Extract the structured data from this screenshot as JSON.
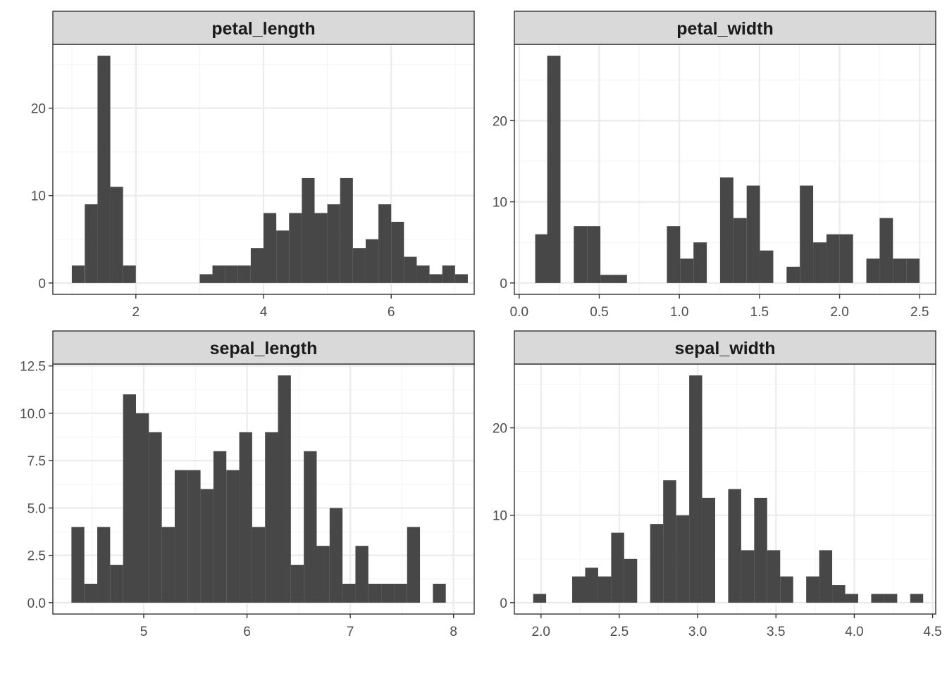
{
  "chart_data": [
    {
      "type": "histogram",
      "title": "petal_length",
      "bins": [
        0.997,
        1.2,
        1.4,
        1.6,
        1.8,
        2.0,
        2.2,
        2.4,
        2.6,
        2.8,
        3.0,
        3.2,
        3.4,
        3.6,
        3.8,
        4.0,
        4.2,
        4.4,
        4.6,
        4.8,
        5.0,
        5.2,
        5.4,
        5.6,
        5.8,
        6.0,
        6.2,
        6.4,
        6.6,
        6.8,
        7.0
      ],
      "bin_width": 0.2,
      "counts": [
        2,
        9,
        26,
        11,
        2,
        0,
        0,
        0,
        0,
        0,
        1,
        2,
        2,
        2,
        4,
        8,
        6,
        8,
        12,
        8,
        9,
        12,
        4,
        5,
        9,
        7,
        3,
        2,
        1,
        2,
        1
      ],
      "xlim": [
        0.7,
        7.3
      ],
      "ylim": [
        -1.3,
        27.3
      ],
      "x_ticks": [
        {
          "v": 2,
          "label": "2"
        },
        {
          "v": 4,
          "label": "4"
        },
        {
          "v": 6,
          "label": "6"
        }
      ],
      "y_ticks": [
        {
          "v": 0,
          "label": "0"
        },
        {
          "v": 10,
          "label": "10"
        },
        {
          "v": 20,
          "label": "20"
        }
      ]
    },
    {
      "type": "histogram",
      "title": "petal_width",
      "bins": [
        0.1,
        0.175,
        0.258,
        0.341,
        0.424,
        0.507,
        0.59,
        0.673,
        0.756,
        0.839,
        0.922,
        1.005,
        1.088,
        1.171,
        1.254,
        1.337,
        1.42,
        1.503,
        1.586,
        1.669,
        1.752,
        1.835,
        1.918,
        2.001,
        2.084,
        2.167,
        2.25,
        2.333,
        2.416
      ],
      "bin_width": 0.083,
      "counts": [
        6,
        28,
        0,
        7,
        7,
        1,
        1,
        0,
        0,
        0,
        7,
        3,
        5,
        0,
        13,
        8,
        12,
        4,
        0,
        2,
        12,
        5,
        6,
        6,
        0,
        3,
        8,
        3,
        3
      ],
      "xlim": [
        -0.03,
        2.6
      ],
      "ylim": [
        -1.4,
        29.4
      ],
      "x_ticks": [
        {
          "v": 0,
          "label": "0.0"
        },
        {
          "v": 0.5,
          "label": "0.5"
        },
        {
          "v": 1,
          "label": "1.0"
        },
        {
          "v": 1.5,
          "label": "1.5"
        },
        {
          "v": 2,
          "label": "2.0"
        },
        {
          "v": 2.5,
          "label": "2.5"
        }
      ],
      "y_ticks": [
        {
          "v": 0,
          "label": "0"
        },
        {
          "v": 10,
          "label": "10"
        },
        {
          "v": 20,
          "label": "20"
        }
      ]
    },
    {
      "type": "histogram",
      "title": "sepal_length",
      "bins": [
        4.3,
        4.425,
        4.55,
        4.675,
        4.8,
        4.925,
        5.05,
        5.175,
        5.3,
        5.425,
        5.55,
        5.675,
        5.8,
        5.925,
        6.05,
        6.175,
        6.3,
        6.425,
        6.55,
        6.675,
        6.8,
        6.925,
        7.05,
        7.175,
        7.3,
        7.425,
        7.55,
        7.675,
        7.8,
        7.925
      ],
      "bin_width": 0.125,
      "counts": [
        4,
        1,
        4,
        2,
        11,
        10,
        9,
        4,
        7,
        7,
        6,
        8,
        7,
        9,
        4,
        9,
        12,
        2,
        8,
        3,
        5,
        1,
        3,
        1,
        1,
        1,
        4,
        0,
        1
      ],
      "xlim": [
        4.12,
        8.2
      ],
      "ylim": [
        -0.6,
        12.6
      ],
      "x_ticks": [
        {
          "v": 5,
          "label": "5"
        },
        {
          "v": 6,
          "label": "6"
        },
        {
          "v": 7,
          "label": "7"
        },
        {
          "v": 8,
          "label": "8"
        }
      ],
      "y_ticks": [
        {
          "v": 0,
          "label": "0.0"
        },
        {
          "v": 2.5,
          "label": "2.5"
        },
        {
          "v": 5,
          "label": "5.0"
        },
        {
          "v": 7.5,
          "label": "7.5"
        },
        {
          "v": 10,
          "label": "10.0"
        },
        {
          "v": 12.5,
          "label": "12.5"
        }
      ]
    },
    {
      "type": "histogram",
      "title": "sepal_width",
      "bins": [
        1.95,
        2.033,
        2.116,
        2.199,
        2.282,
        2.365,
        2.448,
        2.531,
        2.614,
        2.697,
        2.78,
        2.863,
        2.946,
        3.029,
        3.112,
        3.195,
        3.278,
        3.361,
        3.444,
        3.527,
        3.61,
        3.693,
        3.776,
        3.859,
        3.942,
        4.025,
        4.108,
        4.191,
        4.274,
        4.357
      ],
      "bin_width": 0.083,
      "counts": [
        1,
        0,
        0,
        3,
        4,
        3,
        8,
        5,
        0,
        9,
        14,
        10,
        26,
        12,
        0,
        13,
        6,
        12,
        6,
        3,
        0,
        3,
        6,
        2,
        1,
        0,
        1,
        1,
        0,
        1
      ],
      "xlim": [
        1.83,
        4.52
      ],
      "ylim": [
        -1.3,
        27.3
      ],
      "x_ticks": [
        {
          "v": 2,
          "label": "2.0"
        },
        {
          "v": 2.5,
          "label": "2.5"
        },
        {
          "v": 3,
          "label": "3.0"
        },
        {
          "v": 3.5,
          "label": "3.5"
        },
        {
          "v": 4,
          "label": "4.0"
        },
        {
          "v": 4.5,
          "label": "4.5"
        }
      ],
      "y_ticks": [
        {
          "v": 0,
          "label": "0"
        },
        {
          "v": 10,
          "label": "10"
        },
        {
          "v": 20,
          "label": "20"
        }
      ]
    }
  ],
  "colors": {
    "bar": "#474747",
    "strip_fill": "#d9d9d9",
    "grid_major": "#ebebeb",
    "grid_minor": "#f5f5f5",
    "frame": "#333333"
  }
}
